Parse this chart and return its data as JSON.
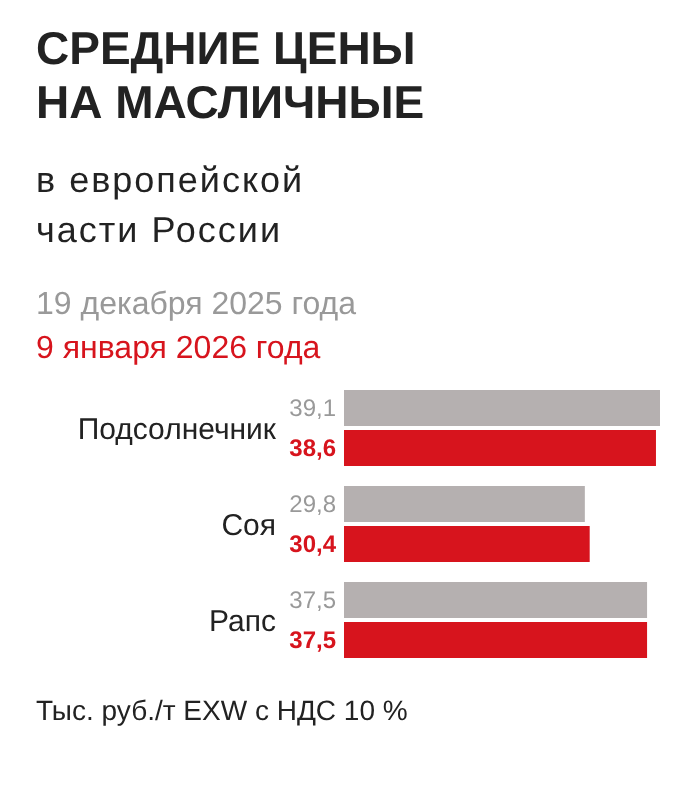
{
  "chart_data": {
    "type": "bar",
    "orientation": "horizontal",
    "title": "СРЕДНИЕ ЦЕНЫ НА МАСЛИЧНЫЕ",
    "subtitle": "в европейской части России",
    "categories": [
      "Подсолнечник",
      "Соя",
      "Рапс"
    ],
    "legend": "top",
    "series": [
      {
        "name": "19 декабря 2025 года",
        "color": "#b5b0b0",
        "values": [
          39.1,
          29.8,
          37.5
        ],
        "value_labels": [
          "39,1",
          "29,8",
          "37,5"
        ]
      },
      {
        "name": "9 января 2026 года",
        "color": "#d7141d",
        "values": [
          38.6,
          30.4,
          37.5
        ],
        "value_labels": [
          "38,6",
          "30,4",
          "37,5"
        ]
      }
    ],
    "annotations": [
      "Тыс. руб./т EXW с НДС 10 %"
    ]
  }
}
